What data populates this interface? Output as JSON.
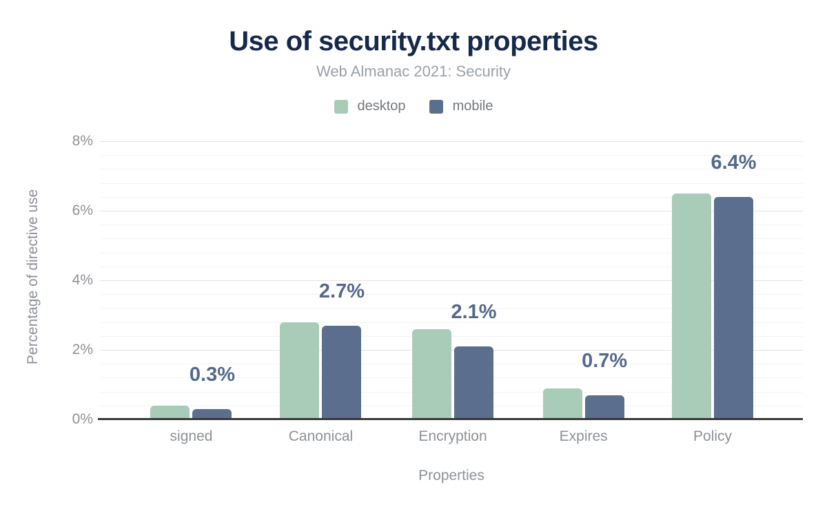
{
  "header": {
    "title": "Use of security.txt properties",
    "subtitle": "Web Almanac 2021: Security"
  },
  "legend": {
    "items": [
      {
        "label": "desktop",
        "color": "#a8ccb8"
      },
      {
        "label": "mobile",
        "color": "#5b6e8d"
      }
    ]
  },
  "chart_data": {
    "type": "bar",
    "title": "Use of security.txt properties",
    "subtitle": "Web Almanac 2021: Security",
    "categories": [
      "signed",
      "Canonical",
      "Encryption",
      "Expires",
      "Policy"
    ],
    "series": [
      {
        "name": "desktop",
        "color": "#a8ccb8",
        "values": [
          0.4,
          2.8,
          2.6,
          0.9,
          6.5
        ]
      },
      {
        "name": "mobile",
        "color": "#5b6e8d",
        "values": [
          0.3,
          2.7,
          2.1,
          0.7,
          6.4
        ]
      }
    ],
    "data_labels": [
      "0.3%",
      "2.7%",
      "2.1%",
      "0.7%",
      "6.4%"
    ],
    "data_labels_series": "mobile",
    "xlabel": "Properties",
    "ylabel": "Percentage of directive use",
    "ylim": [
      0,
      8
    ],
    "yticks": [
      "0%",
      "2%",
      "4%",
      "6%",
      "8%"
    ],
    "ytick_values": [
      0,
      2,
      4,
      6,
      8
    ],
    "major_grid_step": 2,
    "minor_grid_step": 0.4,
    "grid": true,
    "legend_position": "top"
  },
  "style": {
    "title_color": "#16294b",
    "subtitle_color": "#9aa0a6",
    "data_label_color": "#54688c",
    "axis_text_color": "#8d9199",
    "legend_text_color": "#72777f",
    "major_grid_color": "#e2e2e2",
    "minor_grid_color": "#f4f4f4",
    "axis_line_color": "#383838",
    "background": "#ffffff"
  }
}
